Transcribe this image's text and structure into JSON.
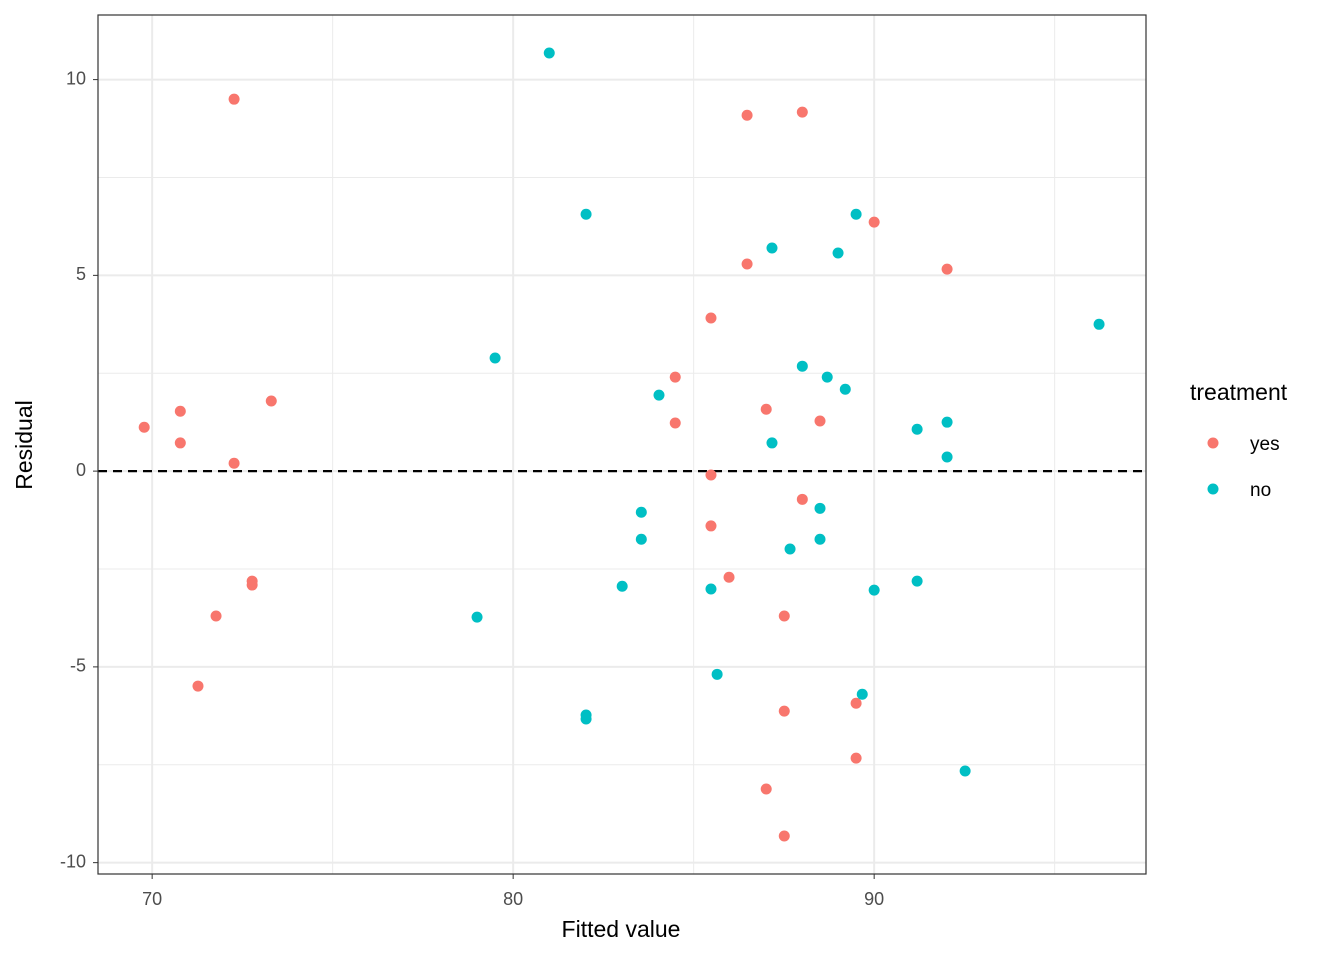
{
  "chart_data": {
    "type": "scatter",
    "x_label": "Fitted value",
    "y_label": "Residual",
    "legend_title": "treatment",
    "legend_position": "right",
    "xlim": [
      68.5,
      97.53
    ],
    "ylim": [
      -10.29,
      11.65
    ],
    "xticks": [
      70,
      80,
      90
    ],
    "yticks": [
      -10,
      -5,
      0,
      5,
      10
    ],
    "x_minor_grid": [
      75,
      85,
      95
    ],
    "y_minor_grid": [
      -7.5,
      -2.5,
      2.5,
      7.5
    ],
    "grid": true,
    "hline": 0,
    "series": [
      {
        "name": "yes",
        "color": "#F8766D",
        "x": [
          69.78,
          70.78,
          70.78,
          72.27,
          72.27,
          73.3,
          72.77,
          72.77,
          71.77,
          71.27,
          86.48,
          88.01,
          90.0,
          86.48,
          92.02,
          85.48,
          84.49,
          87.01,
          84.49,
          88.5,
          85.48,
          88.01,
          85.48,
          85.98,
          87.51,
          87.51,
          89.5,
          89.5,
          87.01,
          87.51
        ],
        "values": [
          1.12,
          1.53,
          0.72,
          9.5,
          0.2,
          1.79,
          -2.81,
          -2.91,
          -3.7,
          -5.49,
          9.09,
          9.17,
          6.36,
          5.29,
          5.16,
          3.91,
          2.4,
          1.58,
          1.23,
          1.28,
          -0.1,
          -0.72,
          -1.4,
          -2.71,
          -3.7,
          -6.13,
          -5.93,
          -7.33,
          -8.12,
          -9.32
        ]
      },
      {
        "name": "no",
        "color": "#00BFC4",
        "x": [
          81.0,
          82.02,
          87.17,
          89.5,
          89.0,
          96.23,
          79.5,
          84.04,
          88.01,
          88.7,
          89.2,
          91.19,
          92.02,
          92.02,
          87.17,
          83.55,
          83.55,
          88.5,
          88.5,
          87.67,
          83.02,
          85.48,
          90.0,
          91.19,
          79.0,
          85.65,
          89.67,
          82.02,
          82.02,
          92.52
        ],
        "values": [
          10.68,
          6.56,
          5.7,
          6.56,
          5.57,
          3.75,
          2.89,
          1.94,
          2.68,
          2.4,
          2.09,
          1.07,
          1.25,
          0.36,
          0.72,
          -1.05,
          -1.74,
          -0.95,
          -1.74,
          -1.99,
          -2.94,
          -3.01,
          -3.04,
          -2.81,
          -3.73,
          -5.19,
          -5.7,
          -6.23,
          -6.33,
          -7.66
        ]
      }
    ]
  }
}
